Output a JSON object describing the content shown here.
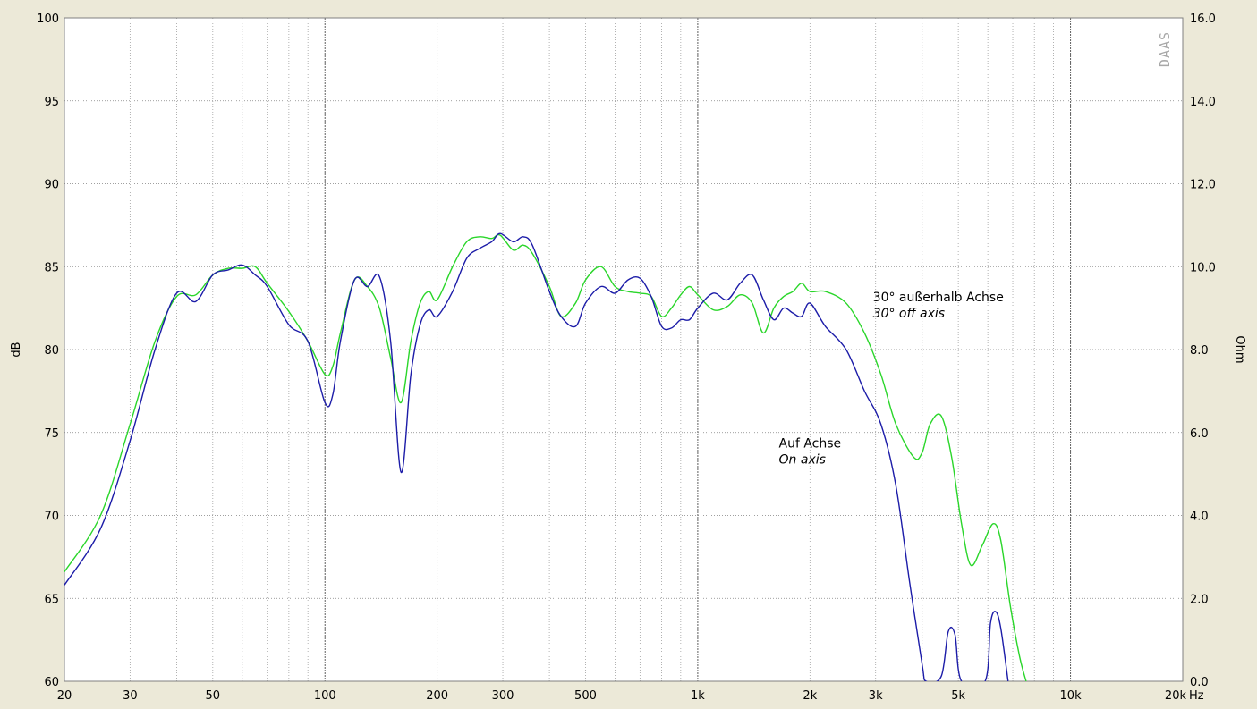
{
  "chart_data": {
    "type": "line",
    "xscale": "log",
    "xlim": [
      20,
      20000
    ],
    "ylim": [
      60,
      100
    ],
    "y2lim": [
      0,
      16
    ],
    "grid": true,
    "ylabel": "dB",
    "y2label": "Ohm",
    "x_unit": "Hz",
    "watermark": "DAAS",
    "x_ticks": [
      {
        "v": 20,
        "label": "20"
      },
      {
        "v": 30,
        "label": "30"
      },
      {
        "v": 50,
        "label": "50"
      },
      {
        "v": 100,
        "label": "100"
      },
      {
        "v": 200,
        "label": "200"
      },
      {
        "v": 300,
        "label": "300"
      },
      {
        "v": 500,
        "label": "500"
      },
      {
        "v": 1000,
        "label": "1k"
      },
      {
        "v": 2000,
        "label": "2k"
      },
      {
        "v": 3000,
        "label": "3k"
      },
      {
        "v": 5000,
        "label": "5k"
      },
      {
        "v": 10000,
        "label": "10k"
      },
      {
        "v": 20000,
        "label": "20k"
      }
    ],
    "y_ticks": [
      {
        "v": 60,
        "label": "60"
      },
      {
        "v": 65,
        "label": "65"
      },
      {
        "v": 70,
        "label": "70"
      },
      {
        "v": 75,
        "label": "75"
      },
      {
        "v": 80,
        "label": "80"
      },
      {
        "v": 85,
        "label": "85"
      },
      {
        "v": 90,
        "label": "90"
      },
      {
        "v": 95,
        "label": "95"
      },
      {
        "v": 100,
        "label": "100"
      }
    ],
    "y2_ticks": [
      {
        "v": 0,
        "label": "0.0"
      },
      {
        "v": 2,
        "label": "2.0"
      },
      {
        "v": 4,
        "label": "4.0"
      },
      {
        "v": 6,
        "label": "6.0"
      },
      {
        "v": 8,
        "label": "8.0"
      },
      {
        "v": 10,
        "label": "10.0"
      },
      {
        "v": 12,
        "label": "12.0"
      },
      {
        "v": 14,
        "label": "14.0"
      },
      {
        "v": 16,
        "label": "16.0"
      }
    ],
    "annotations": [
      {
        "name": "off-axis-label",
        "lines": [
          "30° außerhalb Achse",
          "30° off axis"
        ],
        "at_freq": 2950,
        "at_db": 82.9
      },
      {
        "name": "on-axis-label",
        "lines": [
          "Auf Achse",
          "On axis"
        ],
        "at_freq": 1650,
        "at_db": 74.1
      }
    ],
    "series": [
      {
        "key": "on_axis",
        "color": "#1c1ca8",
        "points": [
          [
            20,
            65.8
          ],
          [
            25,
            69.2
          ],
          [
            30,
            74.5
          ],
          [
            35,
            80.0
          ],
          [
            40,
            83.4
          ],
          [
            45,
            82.9
          ],
          [
            50,
            84.5
          ],
          [
            55,
            84.8
          ],
          [
            60,
            85.1
          ],
          [
            65,
            84.5
          ],
          [
            70,
            83.8
          ],
          [
            80,
            81.5
          ],
          [
            90,
            80.5
          ],
          [
            100,
            76.8
          ],
          [
            105,
            77.3
          ],
          [
            110,
            80.5
          ],
          [
            120,
            84.2
          ],
          [
            130,
            83.8
          ],
          [
            140,
            84.4
          ],
          [
            150,
            80.5
          ],
          [
            160,
            72.6
          ],
          [
            170,
            78.5
          ],
          [
            180,
            81.5
          ],
          [
            190,
            82.4
          ],
          [
            200,
            82.0
          ],
          [
            220,
            83.5
          ],
          [
            240,
            85.5
          ],
          [
            260,
            86.1
          ],
          [
            280,
            86.5
          ],
          [
            295,
            87.0
          ],
          [
            320,
            86.5
          ],
          [
            340,
            86.8
          ],
          [
            360,
            86.3
          ],
          [
            400,
            83.5
          ],
          [
            430,
            82.0
          ],
          [
            470,
            81.4
          ],
          [
            500,
            82.8
          ],
          [
            550,
            83.8
          ],
          [
            600,
            83.4
          ],
          [
            650,
            84.2
          ],
          [
            700,
            84.3
          ],
          [
            750,
            83.2
          ],
          [
            800,
            81.4
          ],
          [
            850,
            81.3
          ],
          [
            900,
            81.8
          ],
          [
            950,
            81.8
          ],
          [
            1000,
            82.5
          ],
          [
            1100,
            83.4
          ],
          [
            1200,
            83.0
          ],
          [
            1300,
            84.0
          ],
          [
            1400,
            84.5
          ],
          [
            1500,
            83.0
          ],
          [
            1600,
            81.8
          ],
          [
            1700,
            82.5
          ],
          [
            1800,
            82.2
          ],
          [
            1900,
            82.0
          ],
          [
            2000,
            82.8
          ],
          [
            2200,
            81.4
          ],
          [
            2500,
            80.0
          ],
          [
            2800,
            77.5
          ],
          [
            3100,
            75.5
          ],
          [
            3400,
            71.8
          ],
          [
            3700,
            66.0
          ],
          [
            4000,
            61.0
          ],
          [
            4100,
            60.0
          ],
          [
            4500,
            60.3
          ],
          [
            4700,
            63.0
          ],
          [
            4900,
            62.8
          ],
          [
            5100,
            60.0
          ],
          [
            5900,
            60.0
          ],
          [
            6100,
            63.5
          ],
          [
            6300,
            64.2
          ],
          [
            6500,
            63.2
          ],
          [
            6800,
            60.0
          ]
        ]
      },
      {
        "key": "off_axis",
        "color": "#2ad62a",
        "points": [
          [
            20,
            66.6
          ],
          [
            25,
            70.0
          ],
          [
            30,
            75.5
          ],
          [
            35,
            80.5
          ],
          [
            40,
            83.2
          ],
          [
            45,
            83.3
          ],
          [
            50,
            84.5
          ],
          [
            55,
            84.9
          ],
          [
            60,
            84.9
          ],
          [
            65,
            85.0
          ],
          [
            70,
            84.0
          ],
          [
            80,
            82.3
          ],
          [
            90,
            80.5
          ],
          [
            100,
            78.5
          ],
          [
            105,
            79.0
          ],
          [
            110,
            81.0
          ],
          [
            120,
            84.2
          ],
          [
            130,
            83.8
          ],
          [
            140,
            82.5
          ],
          [
            150,
            79.5
          ],
          [
            160,
            76.8
          ],
          [
            170,
            80.5
          ],
          [
            180,
            82.8
          ],
          [
            190,
            83.5
          ],
          [
            200,
            83.0
          ],
          [
            220,
            85.0
          ],
          [
            240,
            86.5
          ],
          [
            260,
            86.8
          ],
          [
            280,
            86.7
          ],
          [
            295,
            86.9
          ],
          [
            320,
            86.0
          ],
          [
            340,
            86.3
          ],
          [
            360,
            85.8
          ],
          [
            400,
            83.8
          ],
          [
            430,
            82.0
          ],
          [
            470,
            82.8
          ],
          [
            500,
            84.2
          ],
          [
            550,
            85.0
          ],
          [
            600,
            83.8
          ],
          [
            650,
            83.5
          ],
          [
            700,
            83.4
          ],
          [
            750,
            83.2
          ],
          [
            800,
            82.0
          ],
          [
            850,
            82.5
          ],
          [
            900,
            83.3
          ],
          [
            950,
            83.8
          ],
          [
            1000,
            83.3
          ],
          [
            1100,
            82.4
          ],
          [
            1200,
            82.6
          ],
          [
            1300,
            83.3
          ],
          [
            1400,
            82.8
          ],
          [
            1500,
            81.0
          ],
          [
            1600,
            82.5
          ],
          [
            1700,
            83.2
          ],
          [
            1800,
            83.5
          ],
          [
            1900,
            84.0
          ],
          [
            2000,
            83.5
          ],
          [
            2200,
            83.5
          ],
          [
            2500,
            82.8
          ],
          [
            2800,
            81.0
          ],
          [
            3100,
            78.5
          ],
          [
            3400,
            75.5
          ],
          [
            3800,
            73.5
          ],
          [
            4000,
            73.8
          ],
          [
            4200,
            75.5
          ],
          [
            4500,
            76.0
          ],
          [
            4800,
            73.5
          ],
          [
            5100,
            69.5
          ],
          [
            5400,
            67.0
          ],
          [
            5800,
            68.2
          ],
          [
            6200,
            69.5
          ],
          [
            6500,
            68.5
          ],
          [
            6900,
            64.5
          ],
          [
            7300,
            61.5
          ],
          [
            7600,
            60.0
          ]
        ]
      }
    ]
  }
}
